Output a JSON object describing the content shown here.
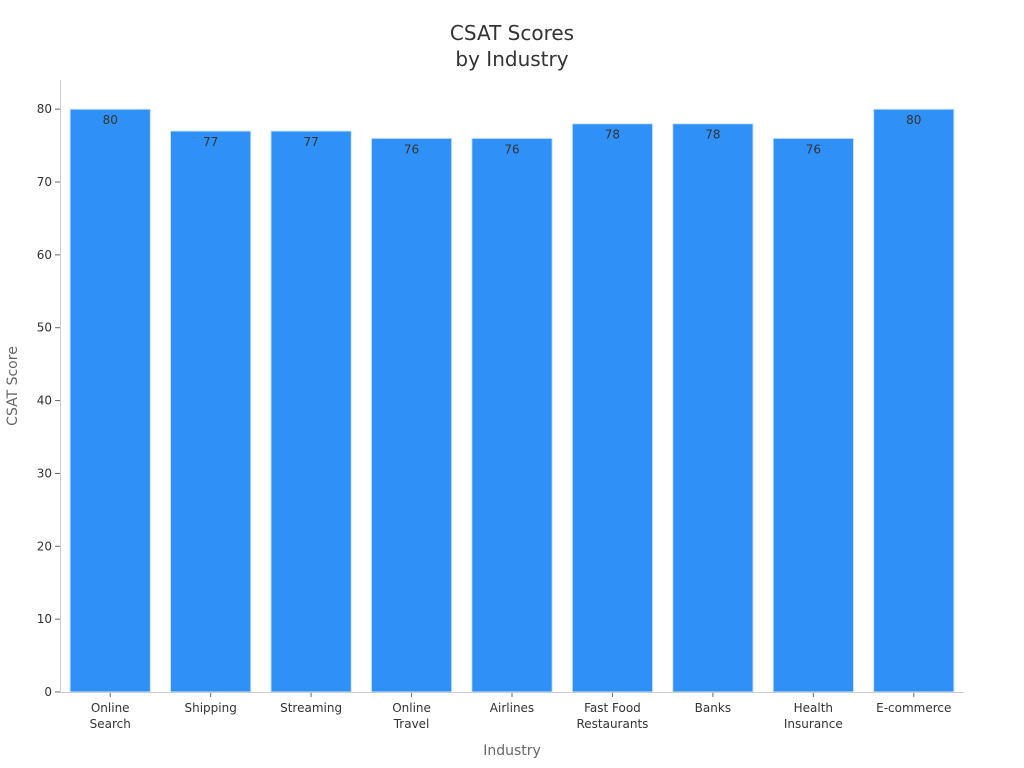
{
  "chart_data": {
    "type": "bar",
    "title_lines": [
      "CSAT Scores",
      "by Industry"
    ],
    "xlabel": "Industry",
    "ylabel": "CSAT Score",
    "categories": [
      [
        "Online",
        "Search"
      ],
      [
        "Shipping"
      ],
      [
        "Streaming"
      ],
      [
        "Online",
        "Travel"
      ],
      [
        "Airlines"
      ],
      [
        "Fast Food",
        "Restaurants"
      ],
      [
        "Banks"
      ],
      [
        "Health",
        "Insurance"
      ],
      [
        "E-commerce"
      ]
    ],
    "values": [
      80,
      77,
      77,
      76,
      76,
      78,
      78,
      76,
      80
    ],
    "value_labels": [
      "80",
      "77",
      "77",
      "76",
      "76",
      "78",
      "78",
      "76",
      "80"
    ],
    "ylim": [
      0,
      84
    ],
    "yticks": [
      0,
      10,
      20,
      30,
      40,
      50,
      60,
      70,
      80
    ],
    "ytick_labels": [
      "0",
      "10",
      "20",
      "30",
      "40",
      "50",
      "60",
      "70",
      "80"
    ],
    "bar_color": "#2f91f7",
    "grid": false,
    "legend": "none"
  }
}
